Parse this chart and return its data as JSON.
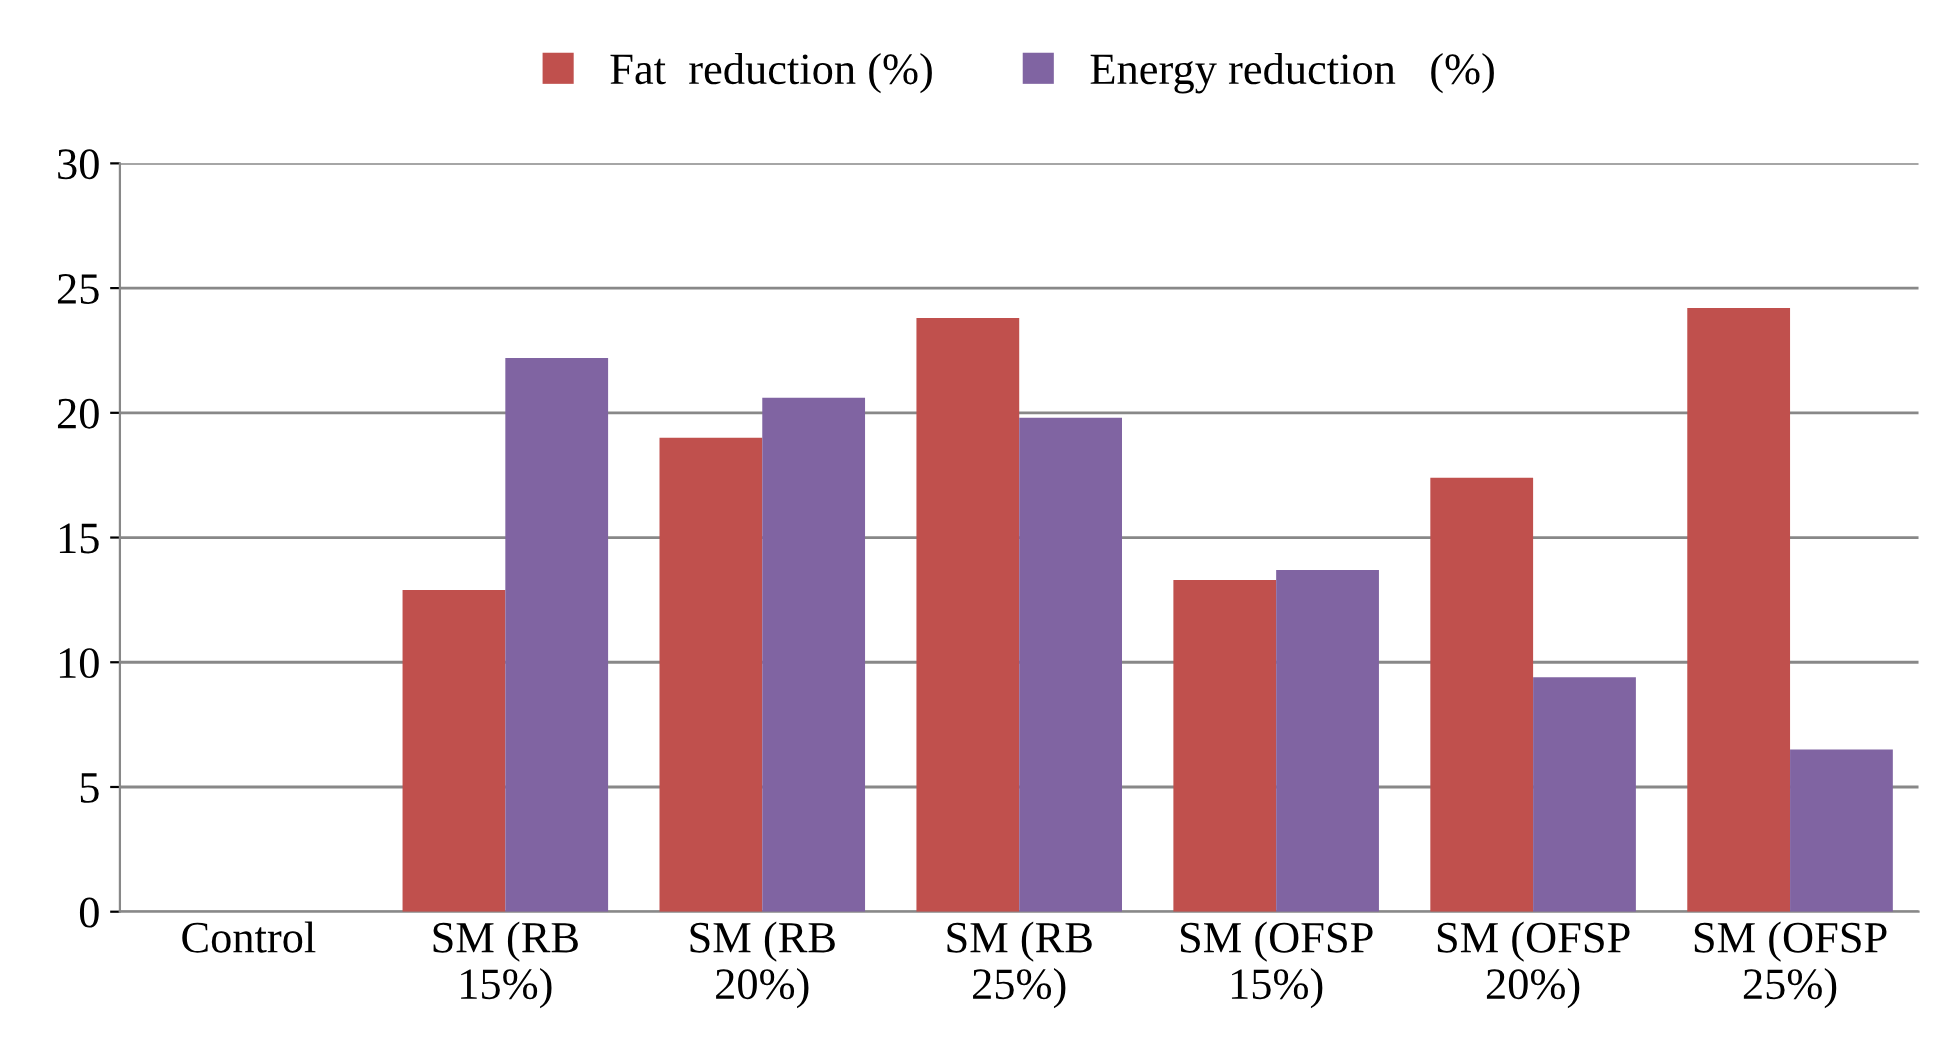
{
  "chart_data": {
    "type": "bar",
    "categories": [
      "Control",
      "SM (RB\n15%)",
      "SM (RB\n20%)",
      "SM (RB\n25%)",
      "SM (OFSP\n15%)",
      "SM (OFSP\n20%)",
      "SM (OFSP\n25%)"
    ],
    "series": [
      {
        "name": "Fat  reduction (%)",
        "color": "#c0504d",
        "values": [
          0,
          12.9,
          19.0,
          23.8,
          13.3,
          17.4,
          24.2
        ]
      },
      {
        "name": "Energy reduction   (%)",
        "color": "#8064a2",
        "values": [
          0,
          22.2,
          20.6,
          19.8,
          13.7,
          9.4,
          6.5
        ]
      }
    ],
    "ylim": [
      0,
      30
    ],
    "yticks": [
      0,
      5,
      10,
      15,
      20,
      25,
      30
    ],
    "grid": "y",
    "legend": "top"
  }
}
